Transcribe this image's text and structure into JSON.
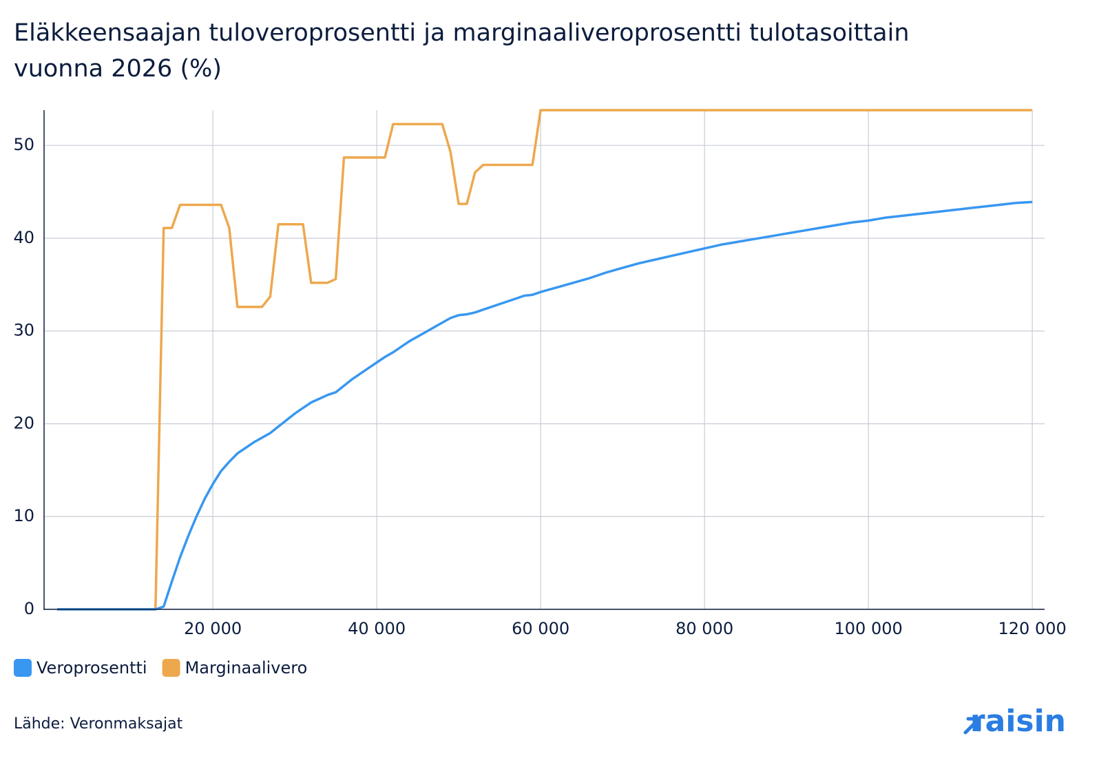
{
  "chart_data": {
    "type": "line",
    "title": "Eläkkeensaajan tuloveroprosentti ja marginaaliveroprosentti tulotasoittain vuonna 2026 (%)",
    "x": [
      1000,
      2000,
      3000,
      4000,
      5000,
      6000,
      7000,
      8000,
      9000,
      10000,
      11000,
      12000,
      13000,
      14000,
      15000,
      16000,
      17000,
      18000,
      19000,
      20000,
      21000,
      22000,
      23000,
      24000,
      25000,
      26000,
      27000,
      28000,
      29000,
      30000,
      31000,
      32000,
      33000,
      34000,
      35000,
      36000,
      37000,
      38000,
      39000,
      40000,
      41000,
      42000,
      43000,
      44000,
      45000,
      46000,
      47000,
      48000,
      49000,
      50000,
      51000,
      52000,
      53000,
      54000,
      55000,
      56000,
      57000,
      58000,
      59000,
      60000,
      62000,
      64000,
      66000,
      68000,
      70000,
      72000,
      74000,
      76000,
      78000,
      80000,
      82000,
      84000,
      86000,
      88000,
      90000,
      92000,
      94000,
      96000,
      98000,
      100000,
      102000,
      104000,
      106000,
      108000,
      110000,
      112000,
      114000,
      116000,
      118000,
      120000
    ],
    "series": [
      {
        "name": "Veroprosentti",
        "color": "#3897f0",
        "values": [
          0,
          0,
          0,
          0,
          0,
          0,
          0,
          0,
          0,
          0,
          0,
          0,
          0,
          0.3,
          3,
          5.6,
          7.9,
          10,
          11.9,
          13.5,
          14.9,
          15.9,
          16.8,
          17.4,
          18.0,
          18.5,
          19.0,
          19.7,
          20.4,
          21.1,
          21.7,
          22.3,
          22.7,
          23.1,
          23.4,
          24.1,
          24.8,
          25.4,
          26.0,
          26.6,
          27.2,
          27.7,
          28.3,
          28.9,
          29.4,
          29.9,
          30.4,
          30.9,
          31.4,
          31.7,
          31.8,
          32.0,
          32.3,
          32.6,
          32.9,
          33.2,
          33.5,
          33.8,
          33.9,
          34.2,
          34.7,
          35.2,
          35.7,
          36.3,
          36.8,
          37.3,
          37.7,
          38.1,
          38.5,
          38.9,
          39.3,
          39.6,
          39.9,
          40.2,
          40.5,
          40.8,
          41.1,
          41.4,
          41.7,
          41.9,
          42.2,
          42.4,
          42.6,
          42.8,
          43.0,
          43.2,
          43.4,
          43.6,
          43.8,
          43.9
        ]
      },
      {
        "name": "Marginaalivero",
        "color": "#eda84e",
        "values": [
          0,
          0,
          0,
          0,
          0,
          0,
          0,
          0,
          0,
          0,
          0,
          0,
          0,
          41.1,
          41.1,
          43.6,
          43.6,
          43.6,
          43.6,
          43.6,
          43.6,
          41.1,
          32.6,
          32.6,
          32.6,
          32.6,
          33.7,
          41.5,
          41.5,
          41.5,
          41.5,
          35.2,
          35.2,
          35.2,
          35.6,
          48.7,
          48.7,
          48.7,
          48.7,
          48.7,
          48.7,
          52.3,
          52.3,
          52.3,
          52.3,
          52.3,
          52.3,
          52.3,
          49.3,
          43.7,
          43.7,
          47.1,
          47.9,
          47.9,
          47.9,
          47.9,
          47.9,
          47.9,
          47.9,
          53.8,
          53.8,
          53.8,
          53.8,
          53.8,
          53.8,
          53.8,
          53.8,
          53.8,
          53.8,
          53.8,
          53.8,
          53.8,
          53.8,
          53.8,
          53.8,
          53.8,
          53.8,
          53.8,
          53.8,
          53.8,
          53.8,
          53.8,
          53.8,
          53.8,
          53.8,
          53.8,
          53.8,
          53.8,
          53.8,
          53.8
        ]
      }
    ],
    "xlim": [
      -600,
      121500
    ],
    "ylim": [
      0,
      53.8
    ],
    "xticks": [
      {
        "value": 20000,
        "label": "20 000"
      },
      {
        "value": 40000,
        "label": "40 000"
      },
      {
        "value": 60000,
        "label": "60 000"
      },
      {
        "value": 80000,
        "label": "80 000"
      },
      {
        "value": 100000,
        "label": "100 000"
      },
      {
        "value": 120000,
        "label": "120 000"
      }
    ],
    "yticks": [
      0,
      10,
      20,
      30,
      40,
      50
    ],
    "grid": true,
    "legend": "bottom-left",
    "source": "Lähde: Veronmaksajat",
    "brand": "raisin"
  }
}
